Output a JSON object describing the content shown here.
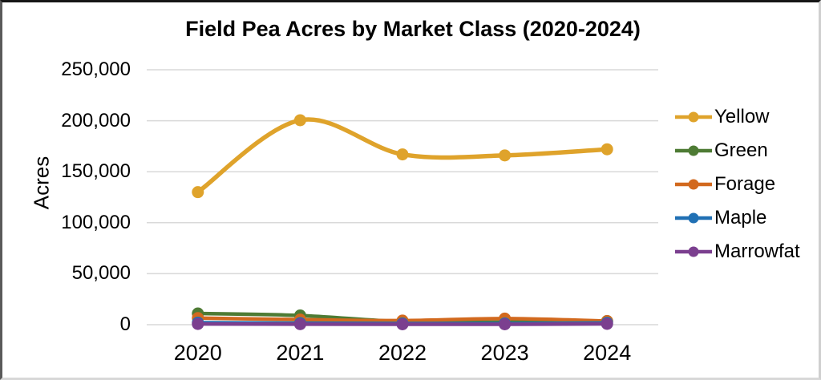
{
  "chart_data": {
    "type": "line",
    "title": "Field Pea Acres by Market Class (2020-2024)",
    "xlabel": "",
    "ylabel": "Acres",
    "categories": [
      "2020",
      "2021",
      "2022",
      "2023",
      "2024"
    ],
    "series": [
      {
        "name": "Yellow",
        "color": "#DFA32B",
        "values": [
          130000,
          200500,
          167000,
          166000,
          172000
        ]
      },
      {
        "name": "Green",
        "color": "#4E7B34",
        "values": [
          11000,
          9000,
          3000,
          2500,
          3500
        ]
      },
      {
        "name": "Forage",
        "color": "#D2691E",
        "values": [
          6500,
          5000,
          4000,
          6000,
          3500
        ]
      },
      {
        "name": "Maple",
        "color": "#2070B4",
        "values": [
          2000,
          1500,
          1200,
          1200,
          1800
        ]
      },
      {
        "name": "Marrowfat",
        "color": "#7B3F8F",
        "values": [
          700,
          500,
          400,
          400,
          800
        ]
      }
    ],
    "ylim": [
      0,
      250000
    ],
    "yticks_top_to_bottom": [
      250000,
      200000,
      150000,
      100000,
      50000,
      0
    ],
    "ytick_labels_top_to_bottom": [
      "250,000",
      "200,000",
      "150,000",
      "100,000",
      "50,000",
      "0"
    ],
    "grid": "horizontal",
    "gridline_color": "#D9D9D9",
    "legend_position": "right",
    "line_style": "smooth"
  }
}
